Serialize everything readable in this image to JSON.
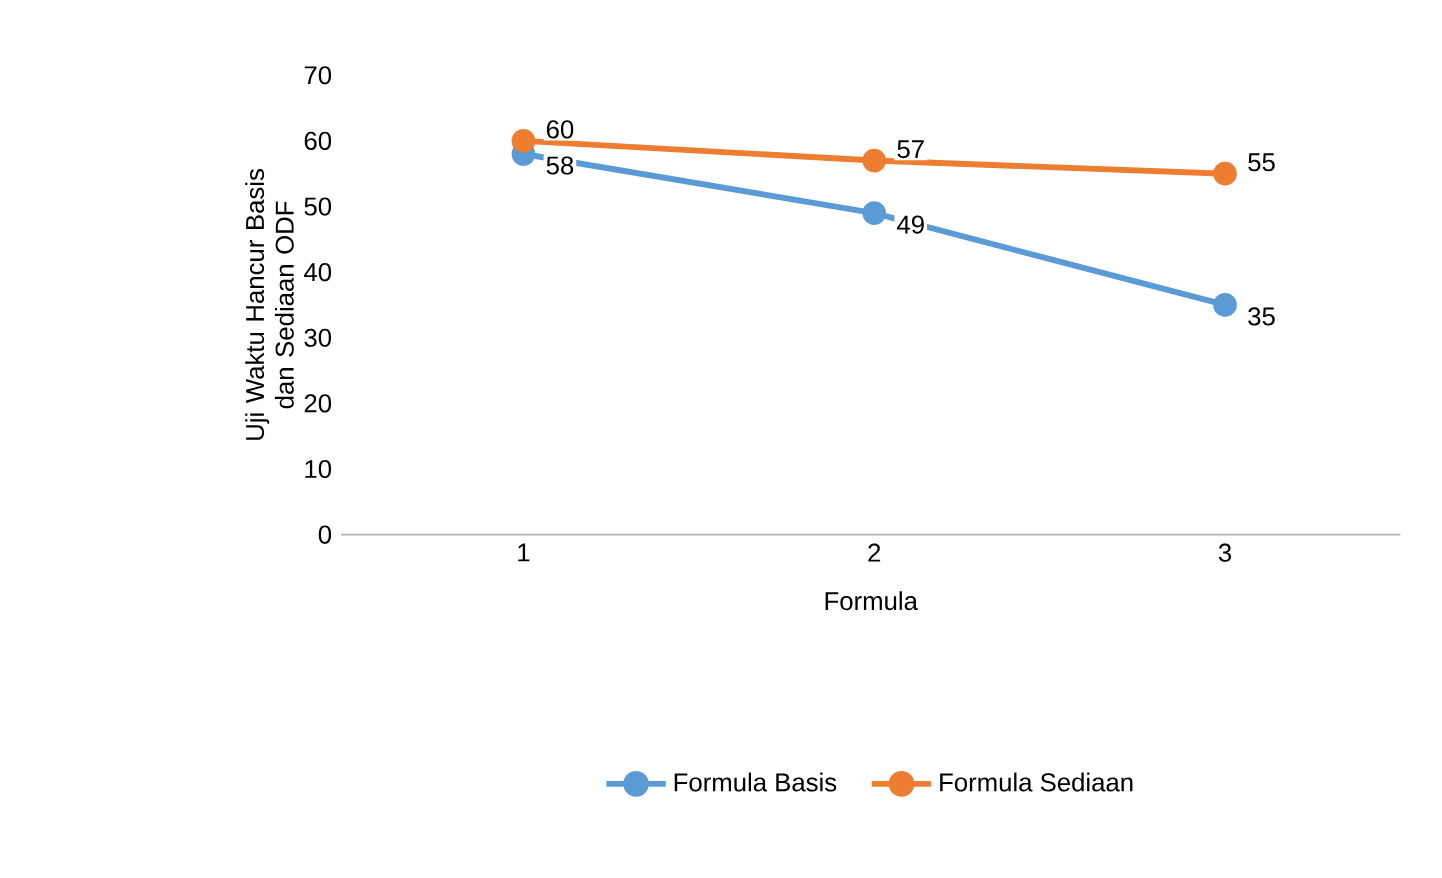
{
  "chart_data": {
    "type": "line",
    "xlabel": "Formula",
    "ylabel": "Uji Waktu Hancur Basis dan Sediaan ODF",
    "categories": [
      "1",
      "2",
      "3"
    ],
    "series": [
      {
        "name": "Formula Basis",
        "color": "#5b9bd5",
        "values": [
          58,
          49,
          35
        ]
      },
      {
        "name": "Formula Sediaan",
        "color": "#ed7d31",
        "values": [
          60,
          57,
          55
        ]
      }
    ],
    "ylim": [
      0,
      70
    ],
    "yticks": [
      0,
      10,
      20,
      30,
      40,
      50,
      60,
      70
    ],
    "grid": false,
    "legend": "bottom",
    "marker": "circle",
    "line_style": "solid",
    "data_labels": true
  }
}
